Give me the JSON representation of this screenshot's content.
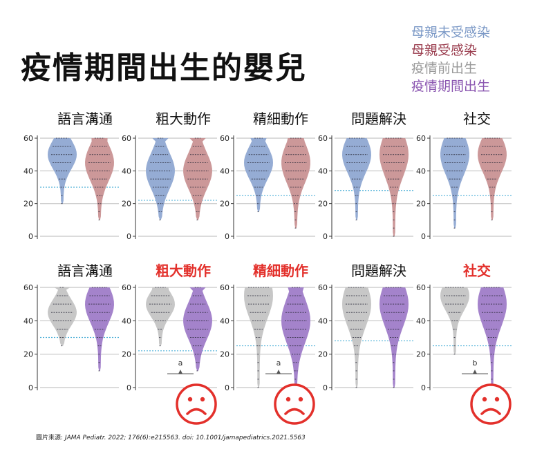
{
  "title": "疫情期間出生的嬰兒",
  "legend": [
    {
      "label": "母親未受感染",
      "color": "#7d9ac7"
    },
    {
      "label": "母親受感染",
      "color": "#9a3d4e"
    },
    {
      "label": "疫情前出生",
      "color": "#9a9a9a"
    },
    {
      "label": "疫情期間出生",
      "color": "#8a55b0"
    }
  ],
  "citation": {
    "prefix": "圖片來源:",
    "journal": "JAMA Pediatr. 2022; 176(6):e215563. doi: 10.1001/jamapediatrics.2021.5563"
  },
  "panel_titles_top": [
    "語言溝通",
    "粗大動作",
    "精細動作",
    "問題解決",
    "社交"
  ],
  "panel_titles_bottom": [
    "語言溝通",
    "粗大動作",
    "精細動作",
    "問題解決",
    "社交"
  ],
  "colors": {
    "uninfected": "#8fa8d2",
    "infected": "#c99294",
    "prepandemic": "#c4c4c4",
    "pandemic": "#9f7cc8",
    "highlight": "#e3302b",
    "cutoff": "#4fb0d8"
  },
  "chart_data": [
    {
      "type": "violin",
      "row": "top",
      "title": "語言溝通",
      "ylim": [
        0,
        60
      ],
      "yticks": [
        0,
        20,
        40,
        60
      ],
      "cutoff": 30,
      "series": [
        {
          "name": "母親未受感染",
          "min": 20,
          "max": 60,
          "median": 50
        },
        {
          "name": "母親受感染",
          "min": 10,
          "max": 60,
          "median": 45
        }
      ]
    },
    {
      "type": "violin",
      "row": "top",
      "title": "粗大動作",
      "ylim": [
        0,
        60
      ],
      "yticks": [
        0,
        20,
        40,
        60
      ],
      "cutoff": 22,
      "series": [
        {
          "name": "母親未受感染",
          "min": 10,
          "max": 60,
          "median": 40
        },
        {
          "name": "母親受感染",
          "min": 10,
          "max": 60,
          "median": 40
        }
      ]
    },
    {
      "type": "violin",
      "row": "top",
      "title": "精細動作",
      "ylim": [
        0,
        60
      ],
      "yticks": [
        0,
        20,
        40,
        60
      ],
      "cutoff": 25,
      "series": [
        {
          "name": "母親未受感染",
          "min": 15,
          "max": 60,
          "median": 45
        },
        {
          "name": "母親受感染",
          "min": 5,
          "max": 60,
          "median": 45
        }
      ]
    },
    {
      "type": "violin",
      "row": "top",
      "title": "問題解決",
      "ylim": [
        0,
        60
      ],
      "yticks": [
        0,
        20,
        40,
        60
      ],
      "cutoff": 28,
      "series": [
        {
          "name": "母親未受感染",
          "min": 10,
          "max": 60,
          "median": 50
        },
        {
          "name": "母親受感染",
          "min": 0,
          "max": 60,
          "median": 50
        }
      ]
    },
    {
      "type": "violin",
      "row": "top",
      "title": "社交",
      "ylim": [
        0,
        60
      ],
      "yticks": [
        0,
        20,
        40,
        60
      ],
      "cutoff": 25,
      "series": [
        {
          "name": "母親未受感染",
          "min": 5,
          "max": 60,
          "median": 50
        },
        {
          "name": "母親受感染",
          "min": 10,
          "max": 60,
          "median": 50
        }
      ]
    },
    {
      "type": "violin",
      "row": "bottom",
      "title": "語言溝通",
      "ylim": [
        0,
        60
      ],
      "yticks": [
        0,
        20,
        40,
        60
      ],
      "cutoff": 30,
      "series": [
        {
          "name": "疫情前出生",
          "min": 25,
          "max": 60,
          "median": 45
        },
        {
          "name": "疫情期間出生",
          "min": 10,
          "max": 60,
          "median": 50
        }
      ]
    },
    {
      "type": "violin",
      "row": "bottom",
      "title": "粗大動作",
      "highlight": true,
      "ylim": [
        0,
        60
      ],
      "yticks": [
        0,
        20,
        40,
        60
      ],
      "cutoff": 22,
      "significance": "a",
      "series": [
        {
          "name": "疫情前出生",
          "min": 25,
          "max": 60,
          "median": 50
        },
        {
          "name": "疫情期間出生",
          "min": 10,
          "max": 60,
          "median": 40
        }
      ]
    },
    {
      "type": "violin",
      "row": "bottom",
      "title": "精細動作",
      "highlight": true,
      "ylim": [
        0,
        60
      ],
      "yticks": [
        0,
        20,
        40,
        60
      ],
      "cutoff": 25,
      "significance": "a",
      "series": [
        {
          "name": "疫情前出生",
          "min": 0,
          "max": 60,
          "median": 55
        },
        {
          "name": "疫情期間出生",
          "min": 0,
          "max": 60,
          "median": 40
        }
      ]
    },
    {
      "type": "violin",
      "row": "bottom",
      "title": "問題解決",
      "ylim": [
        0,
        60
      ],
      "yticks": [
        0,
        20,
        40,
        60
      ],
      "cutoff": 28,
      "series": [
        {
          "name": "疫情前出生",
          "min": 0,
          "max": 60,
          "median": 50
        },
        {
          "name": "疫情期間出生",
          "min": 0,
          "max": 60,
          "median": 50
        }
      ]
    },
    {
      "type": "violin",
      "row": "bottom",
      "title": "社交",
      "highlight": true,
      "ylim": [
        0,
        60
      ],
      "yticks": [
        0,
        20,
        40,
        60
      ],
      "cutoff": 25,
      "significance": "b",
      "series": [
        {
          "name": "疫情前出生",
          "min": 20,
          "max": 60,
          "median": 55
        },
        {
          "name": "疫情期間出生",
          "min": 0,
          "max": 60,
          "median": 50
        }
      ]
    }
  ]
}
